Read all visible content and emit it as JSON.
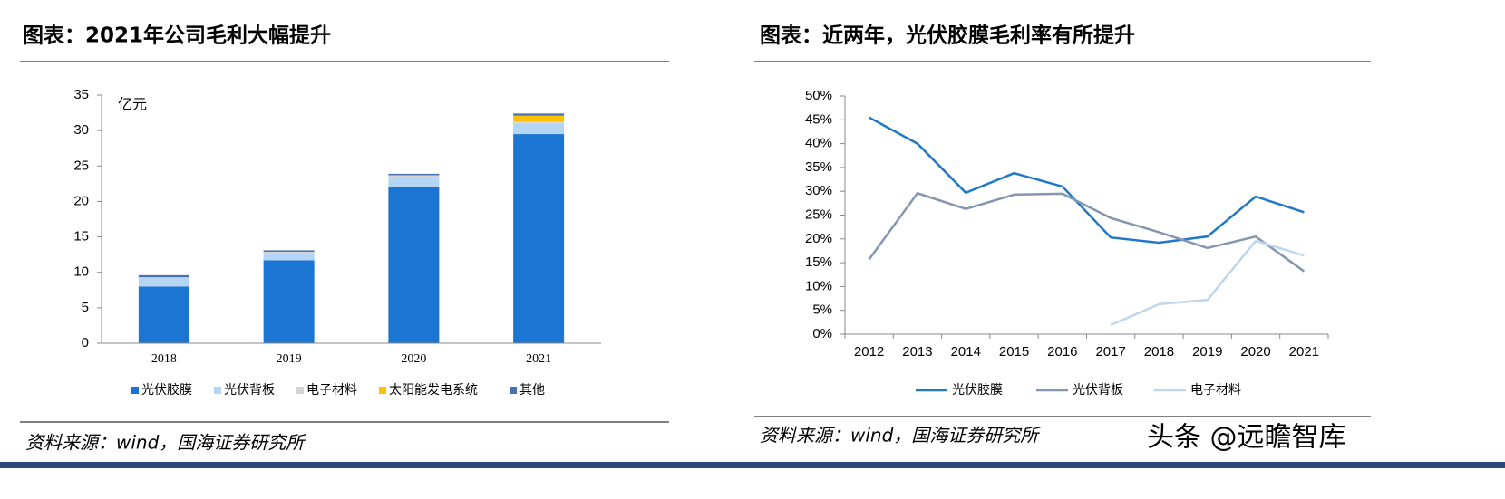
{
  "chart_data": [
    {
      "type": "bar",
      "title": "图表：2021年公司毛利大幅提升",
      "y_unit": "亿元",
      "categories": [
        "2018",
        "2019",
        "2020",
        "2021"
      ],
      "series": [
        {
          "name": "光伏胶膜",
          "color": "#1a76d2",
          "values": [
            8.0,
            11.7,
            22.0,
            29.5
          ]
        },
        {
          "name": "光伏背板",
          "color": "#b4d5f3",
          "values": [
            1.2,
            1.1,
            1.5,
            1.5
          ]
        },
        {
          "name": "电子材料",
          "color": "#d4d4d4",
          "values": [
            0.1,
            0.1,
            0.2,
            0.3
          ]
        },
        {
          "name": "太阳能发电系统",
          "color": "#ffc000",
          "values": [
            0,
            0,
            0,
            0.8
          ]
        },
        {
          "name": "其他",
          "color": "#4a6fb3",
          "values": [
            0.3,
            0.2,
            0.2,
            0.3
          ]
        }
      ],
      "ylim": [
        0,
        35
      ],
      "yticks": [
        0,
        5,
        10,
        15,
        20,
        25,
        30,
        35
      ],
      "source": "资料来源：wind，国海证券研究所"
    },
    {
      "type": "line",
      "title": "图表：近两年，光伏胶膜毛利率有所提升",
      "categories": [
        "2012",
        "2013",
        "2014",
        "2015",
        "2016",
        "2017",
        "2018",
        "2019",
        "2020",
        "2021"
      ],
      "series": [
        {
          "name": "光伏胶膜",
          "color": "#1f78c8",
          "values": [
            45.5,
            40,
            29.7,
            33.8,
            31,
            20.3,
            19.2,
            20.5,
            28.9,
            25.6
          ]
        },
        {
          "name": "光伏背板",
          "color": "#8496b0",
          "values": [
            15.7,
            29.6,
            26.3,
            29.3,
            29.5,
            24.4,
            21.4,
            18.1,
            20.5,
            13.2
          ]
        },
        {
          "name": "电子材料",
          "color": "#bdd7ee",
          "values": [
            null,
            null,
            null,
            null,
            null,
            1.9,
            6.3,
            7.2,
            19.6,
            16.5
          ]
        }
      ],
      "ylim": [
        0,
        50
      ],
      "yticks": [
        {
          "value": 0,
          "label": "0%"
        },
        {
          "value": 5,
          "label": "5%"
        },
        {
          "value": 10,
          "label": "10%"
        },
        {
          "value": 15,
          "label": "15%"
        },
        {
          "value": 20,
          "label": "20%"
        },
        {
          "value": 25,
          "label": "25%"
        },
        {
          "value": 30,
          "label": "30%"
        },
        {
          "value": 35,
          "label": "35%"
        },
        {
          "value": 40,
          "label": "40%"
        },
        {
          "value": 45,
          "label": "45%"
        },
        {
          "value": 50,
          "label": "50%"
        }
      ],
      "source": "资料来源：wind，国海证券研究所"
    }
  ],
  "watermark": "头条 @远瞻智库"
}
